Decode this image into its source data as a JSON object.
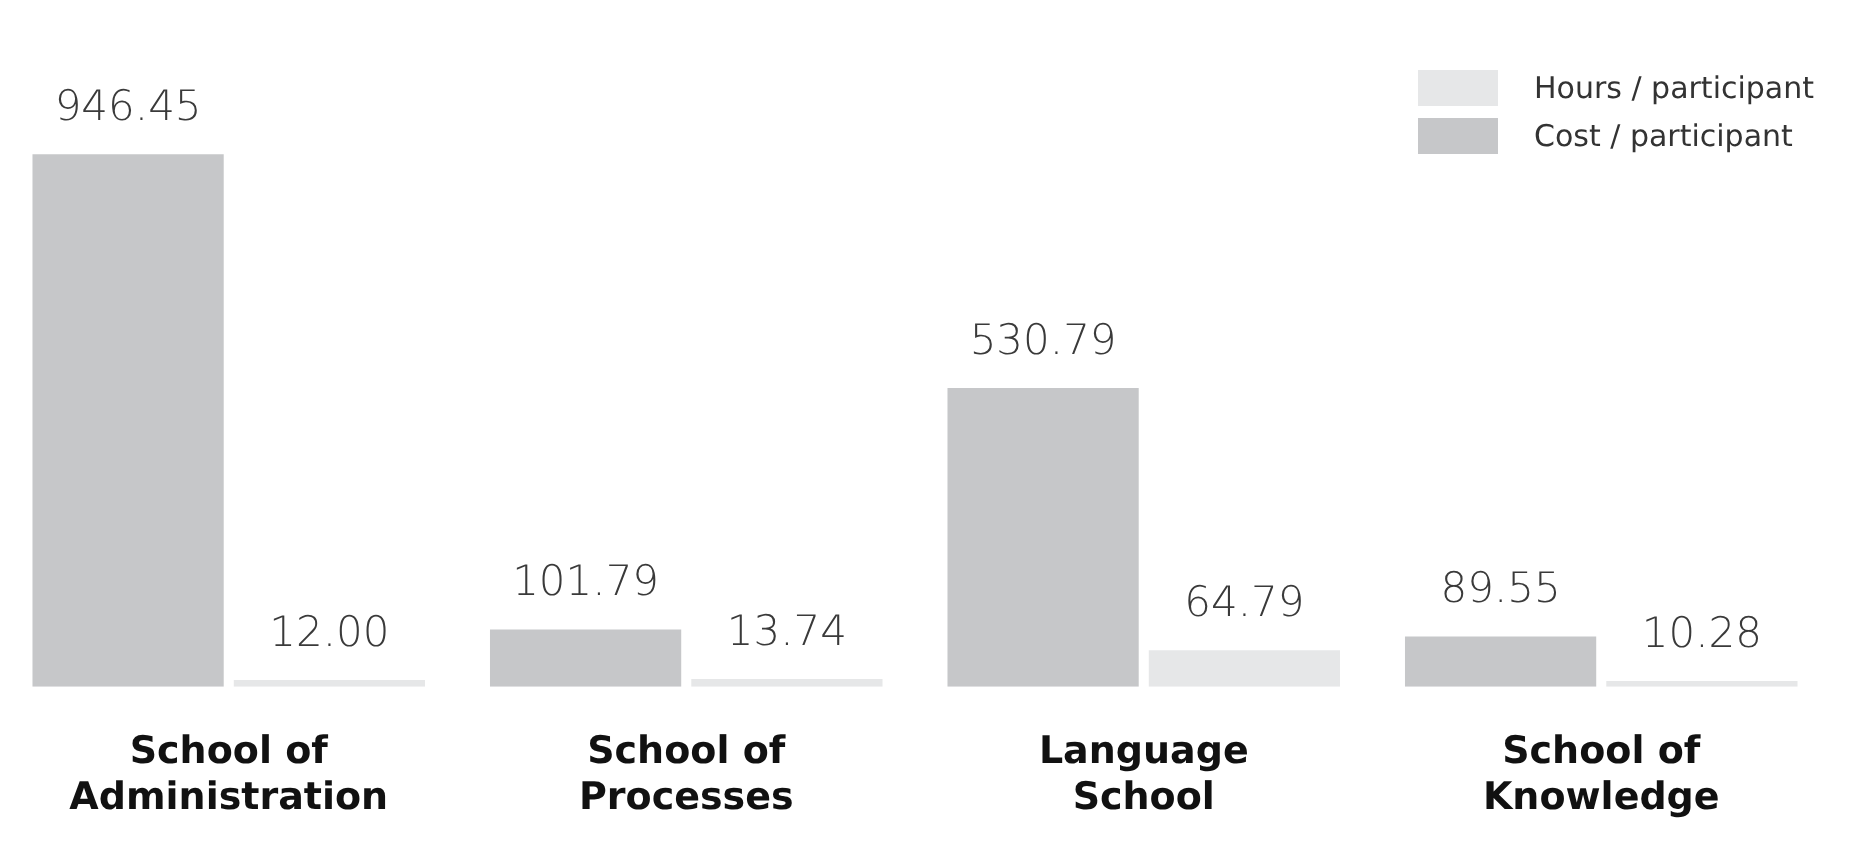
{
  "chart_data": {
    "type": "bar",
    "categories": [
      "School of Administration",
      "School of Processes",
      "Language School",
      "School of Knowledge"
    ],
    "series": [
      {
        "name": "Cost / participant",
        "color": "#c6c7c9",
        "values": [
          946.45,
          101.79,
          530.79,
          89.55
        ],
        "value_labels": [
          "946.45",
          "101.79",
          "530.79",
          "89.55"
        ]
      },
      {
        "name": "Hours / participant",
        "color": "#e6e7e8",
        "values": [
          12.0,
          13.74,
          64.79,
          10.28
        ],
        "value_labels": [
          "12.00",
          "13.74",
          "64.79",
          "10.28"
        ]
      }
    ],
    "tick_labels": "x",
    "legend": "top right"
  }
}
